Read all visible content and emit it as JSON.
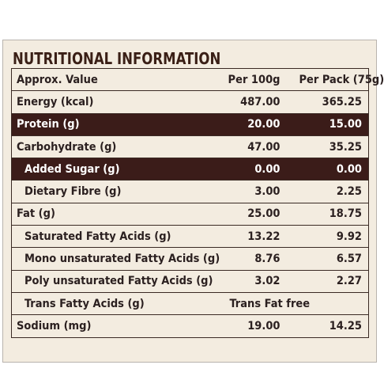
{
  "title": "NUTRITIONAL INFORMATION",
  "colors": {
    "header_text": "#3a1f16",
    "highlight_row": "#3b1c19",
    "panel": "#f3ece0"
  },
  "header": {
    "label": "Approx. Value",
    "per100": "Per 100g",
    "perPack": "Per Pack (75g)"
  },
  "rows": [
    {
      "label": "Energy (kcal)",
      "per100": "487.00",
      "perPack": "365.25"
    },
    {
      "label": "Protein (g)",
      "per100": "20.00",
      "perPack": "15.00"
    },
    {
      "label": "Carbohydrate (g)",
      "per100": "47.00",
      "perPack": "35.25"
    },
    {
      "label": "Added Sugar (g)",
      "per100": "0.00",
      "perPack": "0.00"
    },
    {
      "label": "Dietary Fibre (g)",
      "per100": "3.00",
      "perPack": "2.25"
    },
    {
      "label": "Fat (g)",
      "per100": "25.00",
      "perPack": "18.75"
    },
    {
      "label": "Saturated Fatty Acids (g)",
      "per100": "13.22",
      "perPack": "9.92"
    },
    {
      "label": "Mono unsaturated Fatty Acids (g)",
      "per100": "8.76",
      "perPack": "6.57"
    },
    {
      "label": "Poly unsaturated Fatty Acids (g)",
      "per100": "3.02",
      "perPack": "2.27"
    },
    {
      "label": "Trans Fatty Acids (g)",
      "value": "Trans Fat free"
    },
    {
      "label": "Sodium (mg)",
      "per100": "19.00",
      "perPack": "14.25"
    }
  ]
}
